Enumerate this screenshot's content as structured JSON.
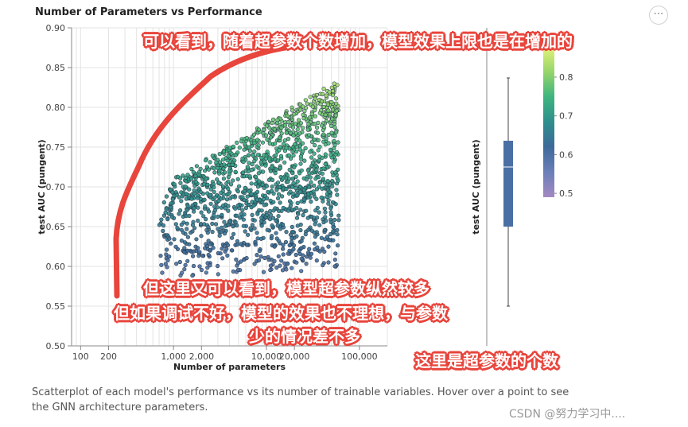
{
  "header": {
    "title": "Number of Parameters vs Performance",
    "more_icon": "more-dots-icon"
  },
  "chart_data": [
    {
      "type": "scatter",
      "title": "Number of Parameters vs Performance",
      "xlabel": "Number of parameters",
      "ylabel": "test AUC (pungent)",
      "x_scale": "log",
      "xlim": [
        80,
        200000
      ],
      "ylim": [
        0.5,
        0.9
      ],
      "x_tick_labels": [
        "100",
        "200",
        "1,000",
        "2,000",
        "10,000",
        "20,000",
        "100,000"
      ],
      "x_tick_values": [
        100,
        200,
        1000,
        2000,
        10000,
        20000,
        100000
      ],
      "y_tick_labels": [
        "0.50",
        "0.55",
        "0.60",
        "0.65",
        "0.70",
        "0.75",
        "0.80",
        "0.85",
        "0.90"
      ],
      "grid": true,
      "color_by": "test AUC",
      "colorscale": [
        "#a389c2",
        "#6b7fb8",
        "#3d6a99",
        "#2e8f8c",
        "#3fb57e",
        "#98d66a",
        "#e6f27a"
      ],
      "point_cloud": {
        "x_range": [
          700,
          60000
        ],
        "y_range": [
          0.58,
          0.84
        ],
        "approx_count": 1400,
        "trend": "upper bound of AUC rises with number of parameters"
      }
    },
    {
      "type": "box",
      "ylabel": "test AUC (pungent)",
      "ylim": [
        0.5,
        0.9
      ],
      "min": 0.55,
      "q1": 0.65,
      "median": 0.725,
      "q3": 0.758,
      "max": 0.837,
      "color": "#4a6fa5"
    },
    {
      "type": "colorbar",
      "tick_labels": [
        "0.5",
        "0.6",
        "0.7",
        "0.8"
      ],
      "range": [
        0.49,
        0.88
      ]
    }
  ],
  "annotations": {
    "top": "可以看到，随着超参数个数增加，模型效果上限也是在增加的",
    "middle_line1": "但这里又可以看到，模型超参数纵然较多",
    "middle_line2": "但如果调试不好，模型的效果也不理想，与参数",
    "middle_line3": "少的情况差不多",
    "bottom_right": "这里是超参数的个数",
    "arrow_color": "#e8453c"
  },
  "caption": "Scatterplot of each model's performance vs its number of trainable variables. Hover over a point to see the GNN architecture parameters.",
  "watermark": "CSDN @努力学习中...."
}
